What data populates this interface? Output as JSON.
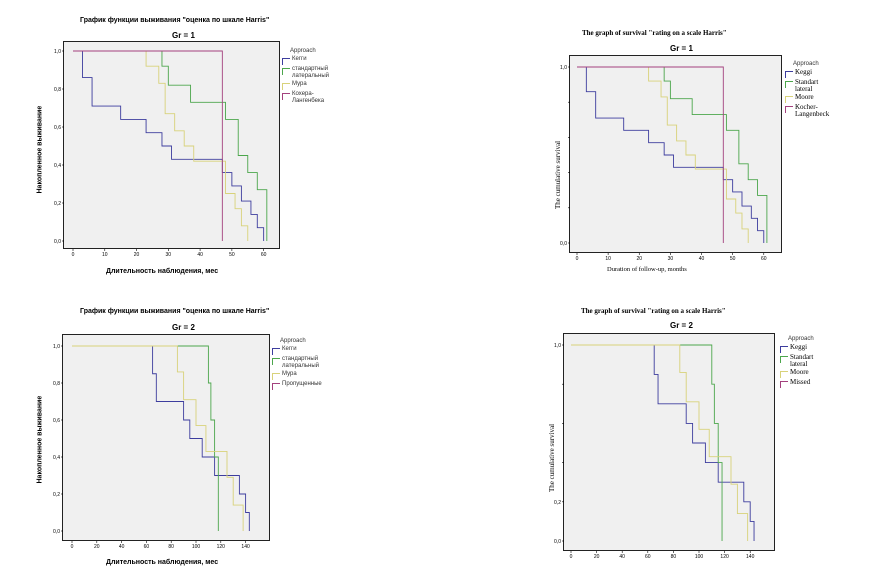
{
  "chart_data": [
    {
      "type": "line",
      "title": "График функции выживания \"оценка по шкале Harris\"",
      "subtitle": "Gr = 1",
      "xlabel": "Длительность наблюдения, мес",
      "ylabel": "Накопленное выживание",
      "xlim": [
        0,
        62
      ],
      "ylim": [
        0,
        1.0
      ],
      "xticks": [
        "0",
        "10",
        "20",
        "30",
        "40",
        "50",
        "60"
      ],
      "xtick_values": [
        0,
        10,
        20,
        30,
        40,
        50,
        60
      ],
      "yticks": [
        "0,0",
        "0,2",
        "0,4",
        "0,6",
        "0,8",
        "1,0"
      ],
      "ytick_values": [
        0,
        0.2,
        0.4,
        0.6,
        0.8,
        1.0
      ],
      "legend_title": "Approach",
      "series": [
        {
          "name": "Кегги",
          "color": "#3d3d9e",
          "x": [
            0,
            3,
            6,
            15,
            23,
            28,
            31,
            47,
            50,
            53,
            56,
            58,
            60
          ],
          "y": [
            1.0,
            0.86,
            0.71,
            0.64,
            0.57,
            0.5,
            0.43,
            0.36,
            0.29,
            0.21,
            0.14,
            0.07,
            0.0
          ]
        },
        {
          "name": "стандартный латеральный",
          "color": "#4ca64c",
          "x": [
            0,
            28,
            30,
            37,
            48,
            52,
            55,
            58,
            61
          ],
          "y": [
            1.0,
            0.92,
            0.82,
            0.73,
            0.64,
            0.45,
            0.36,
            0.27,
            0.0
          ]
        },
        {
          "name": "Мура",
          "color": "#d8d27a",
          "x": [
            0,
            23,
            27,
            29,
            32,
            35,
            38,
            48,
            51,
            53,
            55
          ],
          "y": [
            1.0,
            0.92,
            0.83,
            0.67,
            0.58,
            0.5,
            0.42,
            0.25,
            0.17,
            0.08,
            0.0
          ]
        },
        {
          "name": "Кохера-Лангенбека",
          "color": "#a3417e",
          "x": [
            0,
            47
          ],
          "y": [
            1.0,
            0.0
          ]
        }
      ]
    },
    {
      "type": "line",
      "title": "The graph of survival \"rating on a scale Harris\"",
      "subtitle": "Gr = 1",
      "xlabel": "Duration of follow-up, months",
      "ylabel": "The cumulative survival",
      "xlim": [
        0,
        62
      ],
      "ylim": [
        0,
        1.0
      ],
      "xticks": [
        "0",
        "10",
        "20",
        "30",
        "40",
        "50",
        "60"
      ],
      "xtick_values": [
        0,
        10,
        20,
        30,
        40,
        50,
        60
      ],
      "yticks": [
        "0,0",
        "",
        "",
        "",
        "",
        "1,0"
      ],
      "ytick_values": [
        0,
        0.2,
        0.4,
        0.6,
        0.8,
        1.0
      ],
      "legend_title": "Approach",
      "series": [
        {
          "name": "Keggi",
          "color": "#3d3d9e",
          "x": [
            0,
            3,
            6,
            15,
            23,
            28,
            31,
            47,
            50,
            53,
            56,
            58,
            60
          ],
          "y": [
            1.0,
            0.86,
            0.71,
            0.64,
            0.57,
            0.5,
            0.43,
            0.36,
            0.29,
            0.21,
            0.14,
            0.07,
            0.0
          ]
        },
        {
          "name": "Standart lateral",
          "color": "#4ca64c",
          "x": [
            0,
            28,
            30,
            37,
            48,
            52,
            55,
            58,
            61
          ],
          "y": [
            1.0,
            0.92,
            0.82,
            0.73,
            0.64,
            0.45,
            0.36,
            0.27,
            0.0
          ]
        },
        {
          "name": "Moore",
          "color": "#d8d27a",
          "x": [
            0,
            23,
            27,
            29,
            32,
            35,
            38,
            48,
            51,
            53,
            55
          ],
          "y": [
            1.0,
            0.92,
            0.83,
            0.67,
            0.58,
            0.5,
            0.42,
            0.25,
            0.17,
            0.08,
            0.0
          ]
        },
        {
          "name": "Kocher-Langenbeck",
          "color": "#a3417e",
          "x": [
            0,
            47
          ],
          "y": [
            1.0,
            0.0
          ]
        }
      ]
    },
    {
      "type": "line",
      "title": "График функции выживания \"оценка по шкале Harris\"",
      "subtitle": "Gr = 2",
      "xlabel": "Длительность наблюдения, мес",
      "ylabel": "Накопленное выживание",
      "xlim": [
        0,
        150
      ],
      "ylim": [
        0,
        1.0
      ],
      "xticks": [
        "0",
        "20",
        "40",
        "60",
        "80",
        "100",
        "120",
        "140"
      ],
      "xtick_values": [
        0,
        20,
        40,
        60,
        80,
        100,
        120,
        140
      ],
      "yticks": [
        "0,0",
        "0,2",
        "0,4",
        "0,6",
        "0,8",
        "1,0"
      ],
      "ytick_values": [
        0,
        0.2,
        0.4,
        0.6,
        0.8,
        1.0
      ],
      "legend_title": "Approach",
      "series": [
        {
          "name": "Кегги",
          "color": "#3d3d9e",
          "x": [
            0,
            65,
            68,
            90,
            95,
            105,
            115,
            125,
            135,
            140,
            143
          ],
          "y": [
            1.0,
            0.85,
            0.7,
            0.6,
            0.5,
            0.4,
            0.3,
            0.3,
            0.2,
            0.1,
            0.0
          ]
        },
        {
          "name": "стандартный латеральный",
          "color": "#4ca64c",
          "x": [
            0,
            110,
            112,
            115,
            118
          ],
          "y": [
            1.0,
            0.8,
            0.6,
            0.4,
            0.0
          ]
        },
        {
          "name": "Мура",
          "color": "#d8d27a",
          "x": [
            0,
            85,
            90,
            100,
            108,
            125,
            130,
            138
          ],
          "y": [
            1.0,
            0.86,
            0.71,
            0.57,
            0.43,
            0.29,
            0.14,
            0.0
          ]
        },
        {
          "name": "Пропущенные",
          "color": "#a3417e",
          "x": [],
          "y": []
        }
      ]
    },
    {
      "type": "line",
      "title": "The graph of survival \"rating on a scale Harris\"",
      "subtitle": "Gr = 2",
      "xlabel": "",
      "ylabel": "The cumulative survival",
      "xlim": [
        0,
        150
      ],
      "ylim": [
        0,
        1.0
      ],
      "xticks": [
        "0",
        "20",
        "40",
        "60",
        "80",
        "100",
        "120",
        "140"
      ],
      "xtick_values": [
        0,
        20,
        40,
        60,
        80,
        100,
        120,
        140
      ],
      "yticks": [
        "0,0",
        "0,2",
        "",
        "",
        "",
        "1,0"
      ],
      "ytick_values": [
        0,
        0.2,
        0.4,
        0.6,
        0.8,
        1.0
      ],
      "legend_title": "Approach",
      "series": [
        {
          "name": "Keggi",
          "color": "#3d3d9e",
          "x": [
            0,
            65,
            68,
            90,
            95,
            105,
            115,
            125,
            135,
            140,
            143
          ],
          "y": [
            1.0,
            0.85,
            0.7,
            0.6,
            0.5,
            0.4,
            0.3,
            0.3,
            0.2,
            0.1,
            0.0
          ]
        },
        {
          "name": "Standart lateral",
          "color": "#4ca64c",
          "x": [
            0,
            110,
            112,
            115,
            118
          ],
          "y": [
            1.0,
            0.8,
            0.6,
            0.4,
            0.0
          ]
        },
        {
          "name": "Moore",
          "color": "#d8d27a",
          "x": [
            0,
            85,
            90,
            100,
            108,
            125,
            130,
            138
          ],
          "y": [
            1.0,
            0.86,
            0.71,
            0.57,
            0.43,
            0.29,
            0.14,
            0.0
          ]
        },
        {
          "name": "Missed",
          "color": "#a3417e",
          "x": [],
          "y": []
        }
      ]
    }
  ]
}
